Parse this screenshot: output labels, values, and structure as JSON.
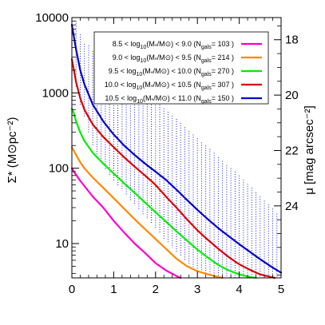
{
  "chart_data": {
    "type": "line",
    "title": "",
    "xlabel": "",
    "ylabel": "Σ* (M⊙pc⁻²)",
    "ylabel_right": "μ [mag arcsec⁻²]",
    "xlim": [
      0,
      5
    ],
    "ylim": [
      3.5,
      10000
    ],
    "yscale": "log",
    "y_right_lim": [
      26.6,
      17.2
    ],
    "x_ticks": [
      "0",
      "1",
      "2",
      "3",
      "4",
      "5"
    ],
    "y_ticks": [
      "10",
      "100",
      "1000",
      "10000"
    ],
    "y_right_ticks": [
      "18",
      "20",
      "22",
      "24"
    ],
    "legend_position": "top-right",
    "grid": false,
    "series": [
      {
        "name": "8.5 < log10(M*/M☉) < 9.0 (Ngals= 103 )",
        "label_parts": {
          "lo": "8.5",
          "hi": "9.0",
          "n": "103"
        },
        "color": "#ff00cc",
        "x": [
          0.0,
          0.05,
          0.1,
          0.2,
          0.3,
          0.5,
          0.75,
          1.0,
          1.25,
          1.5,
          1.75,
          2.0,
          2.25,
          2.5,
          2.6
        ],
        "y": [
          100,
          90,
          82,
          68,
          58,
          42,
          30,
          20,
          14,
          10,
          7.5,
          5.5,
          4.4,
          3.7,
          3.5
        ]
      },
      {
        "name": "9.0 < log10(M*/M☉) < 9.5 (Ngals= 214 )",
        "label_parts": {
          "lo": "9.0",
          "hi": "9.5",
          "n": "214"
        },
        "color": "#ff8800",
        "x": [
          0.0,
          0.05,
          0.1,
          0.2,
          0.3,
          0.5,
          0.75,
          1.0,
          1.25,
          1.5,
          1.75,
          2.0,
          2.25,
          2.5,
          2.75,
          3.0,
          3.25,
          3.5,
          3.6
        ],
        "y": [
          190,
          170,
          150,
          120,
          100,
          75,
          55,
          40,
          29,
          21,
          15.5,
          11.5,
          8.5,
          6.3,
          5.0,
          4.3,
          3.9,
          3.6,
          3.5
        ]
      },
      {
        "name": "9.5 < log10(M*/M☉) < 10.0 (Ngals= 270 )",
        "label_parts": {
          "lo": "9.5",
          "hi": "10.0",
          "n": "270"
        },
        "color": "#00ee00",
        "x": [
          0.0,
          0.05,
          0.1,
          0.2,
          0.3,
          0.5,
          0.75,
          1.0,
          1.25,
          1.5,
          1.75,
          2.0,
          2.25,
          2.5,
          2.75,
          3.0,
          3.25,
          3.5,
          3.75,
          4.0,
          4.25,
          4.4
        ],
        "y": [
          620,
          530,
          420,
          300,
          230,
          160,
          115,
          85,
          63,
          47,
          35,
          26,
          19.5,
          14.5,
          11,
          8.3,
          6.5,
          5.2,
          4.4,
          3.9,
          3.6,
          3.5
        ]
      },
      {
        "name": "10.0 < log10(M*/M☉) < 10.5 (Ngals= 307 )",
        "label_parts": {
          "lo": "10.0",
          "hi": "10.5",
          "n": "307"
        },
        "color": "#dd0000",
        "x": [
          0.0,
          0.05,
          0.1,
          0.2,
          0.3,
          0.5,
          0.75,
          1.0,
          1.25,
          1.5,
          1.75,
          2.0,
          2.25,
          2.5,
          2.75,
          3.0,
          3.25,
          3.5,
          3.75,
          4.0,
          4.25,
          4.5,
          4.75,
          4.85
        ],
        "y": [
          2800,
          2000,
          1400,
          850,
          600,
          380,
          260,
          190,
          140,
          105,
          80,
          60,
          42,
          30,
          21,
          15,
          11.2,
          8.5,
          6.6,
          5.3,
          4.5,
          3.9,
          3.6,
          3.5
        ]
      },
      {
        "name": "10.5 < log10(M*/M☉) < 11.0 (Ngals= 150 )",
        "label_parts": {
          "lo": "10.5",
          "hi": "11.0",
          "n": "150"
        },
        "color": "#0000cc",
        "x": [
          0.0,
          0.05,
          0.1,
          0.2,
          0.3,
          0.5,
          0.75,
          1.0,
          1.25,
          1.5,
          1.75,
          2.0,
          2.25,
          2.5,
          2.75,
          3.0,
          3.25,
          3.5,
          3.75,
          4.0,
          4.25,
          4.5,
          4.75,
          5.0
        ],
        "y": [
          8000,
          5500,
          3800,
          2000,
          1300,
          700,
          420,
          280,
          200,
          150,
          115,
          90,
          70,
          52,
          38,
          28,
          21,
          16,
          12.5,
          9.8,
          7.8,
          6.2,
          5.0,
          4.1
        ]
      }
    ],
    "errorbars": {
      "series": "10.5 < log10(M*/M☉) < 11.0 (Ngals= 150 )",
      "color": "#0000cc",
      "style": "dotted",
      "x": [
        0.1,
        0.2,
        0.3,
        0.4,
        0.5,
        0.6,
        0.7,
        0.8,
        0.9,
        1.0,
        1.1,
        1.2,
        1.3,
        1.4,
        1.5,
        1.6,
        1.7,
        1.8,
        1.9,
        2.0,
        2.1,
        2.2,
        2.3,
        2.4,
        2.5,
        2.6,
        2.7,
        2.8,
        2.9,
        3.0,
        3.1,
        3.2,
        3.3,
        3.4,
        3.5,
        3.6,
        3.7,
        3.8,
        3.9,
        4.0,
        4.1,
        4.2,
        4.3,
        4.4,
        4.5,
        4.6,
        4.7,
        4.8,
        4.9
      ],
      "high": [
        9000,
        6000,
        4500,
        4300,
        3600,
        3400,
        3200,
        2900,
        2600,
        2200,
        1900,
        1700,
        1550,
        1400,
        1250,
        1150,
        1050,
        950,
        870,
        800,
        700,
        620,
        560,
        500,
        450,
        400,
        350,
        310,
        280,
        250,
        220,
        200,
        180,
        160,
        140,
        125,
        110,
        100,
        90,
        80,
        70,
        62,
        55,
        48,
        42,
        37,
        33,
        29,
        25
      ],
      "low": [
        1200,
        700,
        480,
        300,
        200,
        150,
        120,
        95,
        80,
        68,
        58,
        50,
        43,
        37,
        32,
        28,
        24,
        21,
        18,
        15.5,
        13.5,
        11.5,
        10,
        8.8,
        7.6,
        6.7,
        6.0,
        5.4,
        4.9,
        4.5,
        4.2,
        3.9,
        3.7,
        3.6,
        3.5,
        3.5,
        3.5,
        3.5,
        3.5,
        3.5,
        3.5,
        3.5,
        3.5,
        3.5,
        3.5,
        3.5,
        3.5,
        3.5,
        3.5
      ]
    }
  }
}
